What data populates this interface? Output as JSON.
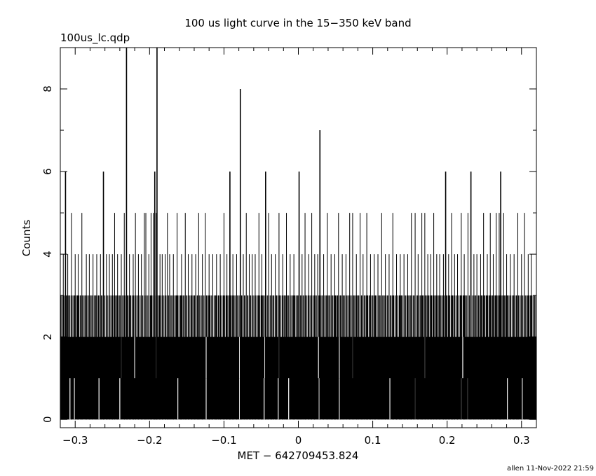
{
  "title": "100 us light curve in the 15−350 keV band",
  "file_label": "100us_lc.qdp",
  "xlabel": "MET − 642709453.824",
  "ylabel": "Counts",
  "footer": "allen 11-Nov-2022 21:59",
  "colors": {
    "background": "#ffffff",
    "ink": "#000000"
  },
  "chart_data": {
    "type": "histogram",
    "title": "100 us light curve in the 15−350 keV band",
    "xlabel": "MET − 642709453.824",
    "ylabel": "Counts",
    "xlim": [
      -0.32,
      0.32
    ],
    "ylim": [
      -0.2,
      9.0
    ],
    "bin_width": 0.0001,
    "x_ticks": [
      -0.3,
      -0.2,
      -0.1,
      0,
      0.1,
      0.2,
      0.3
    ],
    "x_tick_labels": [
      "−0.3",
      "−0.2",
      "−0.1",
      "0",
      "0.1",
      "0.2",
      "0.3"
    ],
    "y_ticks": [
      0,
      2,
      4,
      6,
      8
    ],
    "y_tick_labels": [
      "0",
      "2",
      "4",
      "6",
      "8"
    ],
    "dense_fill_level": 2,
    "regular_spike_level": 3,
    "grid": false,
    "legend": "none",
    "spikes": [
      {
        "x": -0.316,
        "counts": 4
      },
      {
        "x": -0.313,
        "counts": 6
      },
      {
        "x": -0.31,
        "counts": 4
      },
      {
        "x": -0.305,
        "counts": 5
      },
      {
        "x": -0.3,
        "counts": 4
      },
      {
        "x": -0.296,
        "counts": 4
      },
      {
        "x": -0.291,
        "counts": 5
      },
      {
        "x": -0.285,
        "counts": 4
      },
      {
        "x": -0.281,
        "counts": 4
      },
      {
        "x": -0.276,
        "counts": 4
      },
      {
        "x": -0.271,
        "counts": 4
      },
      {
        "x": -0.266,
        "counts": 4
      },
      {
        "x": -0.262,
        "counts": 6
      },
      {
        "x": -0.258,
        "counts": 4
      },
      {
        "x": -0.254,
        "counts": 4
      },
      {
        "x": -0.25,
        "counts": 4
      },
      {
        "x": -0.247,
        "counts": 5
      },
      {
        "x": -0.243,
        "counts": 4
      },
      {
        "x": -0.238,
        "counts": 4
      },
      {
        "x": -0.234,
        "counts": 5
      },
      {
        "x": -0.231,
        "counts": 9
      },
      {
        "x": -0.227,
        "counts": 4
      },
      {
        "x": -0.222,
        "counts": 4
      },
      {
        "x": -0.219,
        "counts": 5
      },
      {
        "x": -0.215,
        "counts": 4
      },
      {
        "x": -0.211,
        "counts": 4
      },
      {
        "x": -0.207,
        "counts": 5
      },
      {
        "x": -0.205,
        "counts": 5
      },
      {
        "x": -0.201,
        "counts": 4
      },
      {
        "x": -0.198,
        "counts": 5
      },
      {
        "x": -0.195,
        "counts": 5
      },
      {
        "x": -0.193,
        "counts": 6
      },
      {
        "x": -0.191,
        "counts": 5
      },
      {
        "x": -0.19,
        "counts": 9
      },
      {
        "x": -0.186,
        "counts": 4
      },
      {
        "x": -0.183,
        "counts": 4
      },
      {
        "x": -0.179,
        "counts": 4
      },
      {
        "x": -0.176,
        "counts": 5
      },
      {
        "x": -0.173,
        "counts": 4
      },
      {
        "x": -0.168,
        "counts": 4
      },
      {
        "x": -0.163,
        "counts": 5
      },
      {
        "x": -0.157,
        "counts": 4
      },
      {
        "x": -0.152,
        "counts": 5
      },
      {
        "x": -0.148,
        "counts": 4
      },
      {
        "x": -0.143,
        "counts": 4
      },
      {
        "x": -0.138,
        "counts": 4
      },
      {
        "x": -0.134,
        "counts": 5
      },
      {
        "x": -0.129,
        "counts": 4
      },
      {
        "x": -0.125,
        "counts": 5
      },
      {
        "x": -0.12,
        "counts": 4
      },
      {
        "x": -0.115,
        "counts": 4
      },
      {
        "x": -0.11,
        "counts": 4
      },
      {
        "x": -0.105,
        "counts": 4
      },
      {
        "x": -0.1,
        "counts": 5
      },
      {
        "x": -0.096,
        "counts": 4
      },
      {
        "x": -0.092,
        "counts": 6
      },
      {
        "x": -0.088,
        "counts": 4
      },
      {
        "x": -0.083,
        "counts": 4
      },
      {
        "x": -0.078,
        "counts": 8
      },
      {
        "x": -0.074,
        "counts": 4
      },
      {
        "x": -0.07,
        "counts": 5
      },
      {
        "x": -0.066,
        "counts": 4
      },
      {
        "x": -0.062,
        "counts": 4
      },
      {
        "x": -0.058,
        "counts": 4
      },
      {
        "x": -0.053,
        "counts": 5
      },
      {
        "x": -0.049,
        "counts": 4
      },
      {
        "x": -0.044,
        "counts": 6
      },
      {
        "x": -0.04,
        "counts": 5
      },
      {
        "x": -0.036,
        "counts": 4
      },
      {
        "x": -0.031,
        "counts": 4
      },
      {
        "x": -0.026,
        "counts": 5
      },
      {
        "x": -0.021,
        "counts": 4
      },
      {
        "x": -0.016,
        "counts": 5
      },
      {
        "x": -0.011,
        "counts": 4
      },
      {
        "x": -0.006,
        "counts": 4
      },
      {
        "x": 0.001,
        "counts": 6
      },
      {
        "x": 0.005,
        "counts": 4
      },
      {
        "x": 0.009,
        "counts": 5
      },
      {
        "x": 0.014,
        "counts": 4
      },
      {
        "x": 0.018,
        "counts": 5
      },
      {
        "x": 0.022,
        "counts": 4
      },
      {
        "x": 0.026,
        "counts": 4
      },
      {
        "x": 0.029,
        "counts": 7
      },
      {
        "x": 0.034,
        "counts": 4
      },
      {
        "x": 0.039,
        "counts": 5
      },
      {
        "x": 0.044,
        "counts": 4
      },
      {
        "x": 0.049,
        "counts": 4
      },
      {
        "x": 0.054,
        "counts": 5
      },
      {
        "x": 0.059,
        "counts": 4
      },
      {
        "x": 0.064,
        "counts": 4
      },
      {
        "x": 0.069,
        "counts": 5
      },
      {
        "x": 0.073,
        "counts": 5
      },
      {
        "x": 0.078,
        "counts": 4
      },
      {
        "x": 0.083,
        "counts": 5
      },
      {
        "x": 0.087,
        "counts": 4
      },
      {
        "x": 0.092,
        "counts": 5
      },
      {
        "x": 0.097,
        "counts": 4
      },
      {
        "x": 0.102,
        "counts": 4
      },
      {
        "x": 0.107,
        "counts": 4
      },
      {
        "x": 0.112,
        "counts": 5
      },
      {
        "x": 0.117,
        "counts": 4
      },
      {
        "x": 0.122,
        "counts": 4
      },
      {
        "x": 0.127,
        "counts": 5
      },
      {
        "x": 0.132,
        "counts": 4
      },
      {
        "x": 0.137,
        "counts": 4
      },
      {
        "x": 0.142,
        "counts": 4
      },
      {
        "x": 0.147,
        "counts": 4
      },
      {
        "x": 0.152,
        "counts": 5
      },
      {
        "x": 0.157,
        "counts": 5
      },
      {
        "x": 0.161,
        "counts": 4
      },
      {
        "x": 0.166,
        "counts": 5
      },
      {
        "x": 0.17,
        "counts": 5
      },
      {
        "x": 0.174,
        "counts": 4
      },
      {
        "x": 0.178,
        "counts": 4
      },
      {
        "x": 0.182,
        "counts": 5
      },
      {
        "x": 0.186,
        "counts": 4
      },
      {
        "x": 0.19,
        "counts": 4
      },
      {
        "x": 0.195,
        "counts": 4
      },
      {
        "x": 0.198,
        "counts": 6
      },
      {
        "x": 0.202,
        "counts": 4
      },
      {
        "x": 0.206,
        "counts": 5
      },
      {
        "x": 0.21,
        "counts": 4
      },
      {
        "x": 0.214,
        "counts": 4
      },
      {
        "x": 0.219,
        "counts": 5
      },
      {
        "x": 0.223,
        "counts": 4
      },
      {
        "x": 0.228,
        "counts": 5
      },
      {
        "x": 0.232,
        "counts": 6
      },
      {
        "x": 0.236,
        "counts": 4
      },
      {
        "x": 0.24,
        "counts": 4
      },
      {
        "x": 0.245,
        "counts": 4
      },
      {
        "x": 0.249,
        "counts": 5
      },
      {
        "x": 0.254,
        "counts": 4
      },
      {
        "x": 0.258,
        "counts": 5
      },
      {
        "x": 0.262,
        "counts": 4
      },
      {
        "x": 0.266,
        "counts": 5
      },
      {
        "x": 0.27,
        "counts": 5
      },
      {
        "x": 0.272,
        "counts": 6
      },
      {
        "x": 0.276,
        "counts": 5
      },
      {
        "x": 0.28,
        "counts": 4
      },
      {
        "x": 0.285,
        "counts": 4
      },
      {
        "x": 0.29,
        "counts": 4
      },
      {
        "x": 0.295,
        "counts": 5
      },
      {
        "x": 0.3,
        "counts": 4
      },
      {
        "x": 0.304,
        "counts": 5
      },
      {
        "x": 0.309,
        "counts": 4
      },
      {
        "x": 0.313,
        "counts": 4
      }
    ],
    "zero_gaps": [
      -0.307,
      -0.301,
      -0.268,
      -0.24,
      -0.162,
      -0.124,
      -0.079,
      -0.046,
      -0.027,
      -0.013,
      0.028,
      0.055,
      0.123,
      0.157,
      0.219,
      0.228,
      0.281,
      0.301
    ],
    "one_gaps": [
      -0.238,
      -0.22,
      -0.191,
      -0.124,
      -0.079,
      -0.045,
      -0.026,
      0.027,
      0.055,
      0.073,
      0.17,
      0.221
    ]
  }
}
